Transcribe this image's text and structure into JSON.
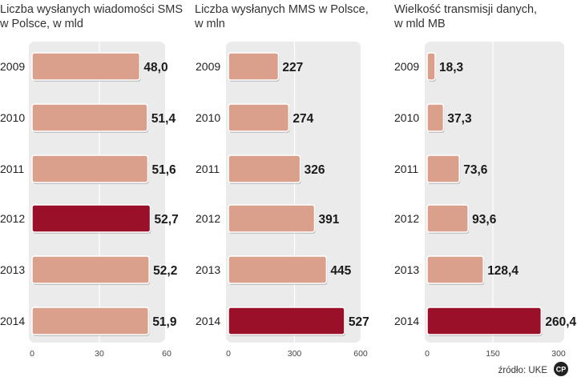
{
  "chart_data": [
    {
      "type": "bar",
      "orientation": "horizontal",
      "title": "Liczba wysłanych wiadomości SMS\nw Polsce, w mld",
      "categories": [
        "2009",
        "2010",
        "2011",
        "2012",
        "2013",
        "2014"
      ],
      "values": [
        48.0,
        51.4,
        51.6,
        52.7,
        52.2,
        51.9
      ],
      "value_labels": [
        "48,0",
        "51,4",
        "51,6",
        "52,7",
        "52,2",
        "51,9"
      ],
      "highlight": "2012",
      "xlim": [
        0,
        60
      ],
      "ticks": [
        0,
        30,
        60
      ],
      "tick_labels": [
        "0",
        "30",
        "60"
      ],
      "grid": true
    },
    {
      "type": "bar",
      "orientation": "horizontal",
      "title": "Liczba wysłanych MMS w Polsce,\nw mln",
      "categories": [
        "2009",
        "2010",
        "2011",
        "2012",
        "2013",
        "2014"
      ],
      "values": [
        227,
        274,
        326,
        391,
        445,
        527
      ],
      "value_labels": [
        "227",
        "274",
        "326",
        "391",
        "445",
        "527"
      ],
      "highlight": "2014",
      "xlim": [
        0,
        600
      ],
      "ticks": [
        0,
        300,
        600
      ],
      "tick_labels": [
        "0",
        "300",
        "600"
      ],
      "grid": true
    },
    {
      "type": "bar",
      "orientation": "horizontal",
      "title": "Wielkość transmisji danych,\nw mld MB",
      "categories": [
        "2009",
        "2010",
        "2011",
        "2012",
        "2013",
        "2014"
      ],
      "values": [
        18.3,
        37.3,
        73.6,
        93.6,
        128.4,
        260.4
      ],
      "value_labels": [
        "18,3",
        "37,3",
        "73,6",
        "93,6",
        "128,4",
        "260,4"
      ],
      "highlight": "2014",
      "xlim": [
        0,
        300
      ],
      "ticks": [
        0,
        150,
        300
      ],
      "tick_labels": [
        "0",
        "150",
        "300"
      ],
      "grid": true
    }
  ],
  "source": "źródło: UKE",
  "logo_text": "CP",
  "colors": {
    "bar": "#dba08b",
    "bar_highlight": "#9b1029",
    "bar_border": "#ffffff",
    "panel_bg": "#ebebeb",
    "grid": "#ffffff",
    "text": "#222222"
  }
}
